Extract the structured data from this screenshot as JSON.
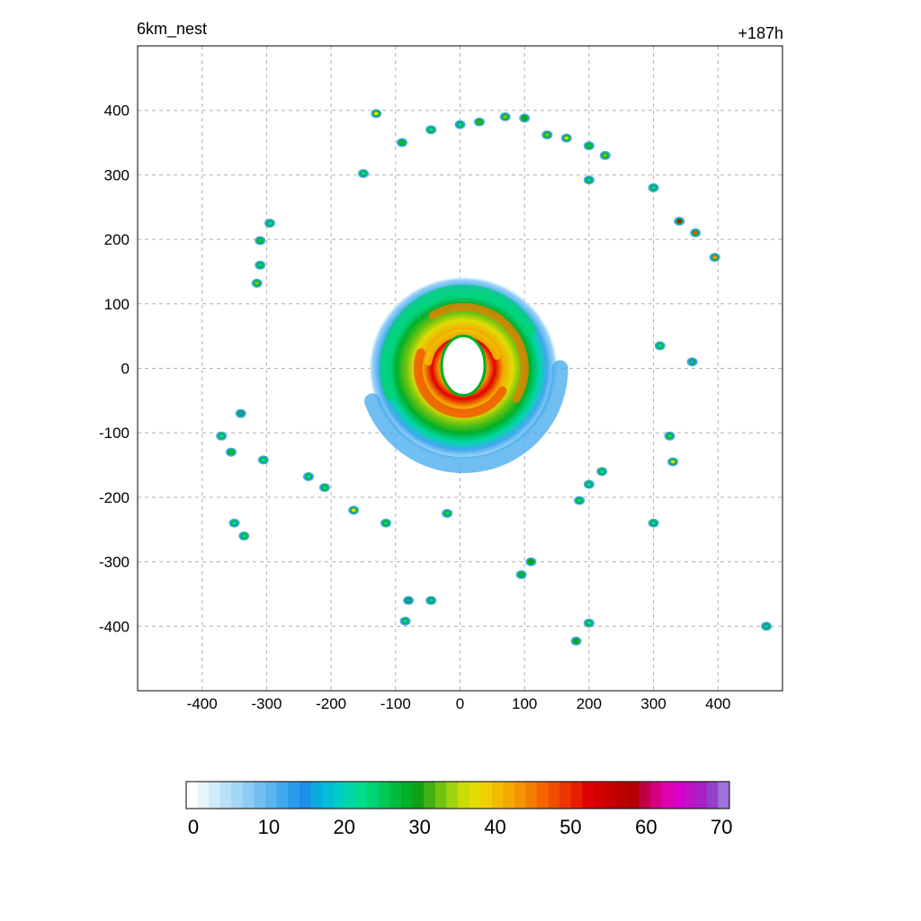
{
  "chart_data": {
    "type": "heatmap",
    "title_left": "6km_nest",
    "title_right": "+187h",
    "x_axis": {
      "ticks": [
        -400,
        -300,
        -200,
        -100,
        0,
        100,
        200,
        300,
        400
      ],
      "range": [
        -500,
        500
      ]
    },
    "y_axis": {
      "ticks": [
        400,
        300,
        200,
        100,
        0,
        -100,
        -200,
        -300,
        -400
      ],
      "range": [
        -500,
        500
      ]
    },
    "grid": true,
    "colorbar": {
      "ticks": [
        0,
        10,
        20,
        30,
        40,
        50,
        60,
        70
      ],
      "range": [
        0,
        72
      ],
      "colors": [
        "#ffffff",
        "#e8f4fc",
        "#d0eafa",
        "#b9e0f8",
        "#a2d6f6",
        "#8bccf4",
        "#72c0f2",
        "#5ab4f0",
        "#40a8ee",
        "#2a9cec",
        "#1a90e8",
        "#0ea8e0",
        "#04bcd8",
        "#00ccc4",
        "#00d8a8",
        "#00dc8c",
        "#00d470",
        "#00c854",
        "#00bc3c",
        "#00b028",
        "#14a014",
        "#40b014",
        "#70c410",
        "#a0d40c",
        "#c8dc08",
        "#e0dc04",
        "#f0d000",
        "#f4bc00",
        "#f4a800",
        "#f49400",
        "#f47c00",
        "#f46400",
        "#f04c00",
        "#ec3400",
        "#e81c00",
        "#e00000",
        "#d40000",
        "#c80000",
        "#bc0000",
        "#b40000",
        "#c00040",
        "#d40080",
        "#e000b0",
        "#d800c8",
        "#c010c8",
        "#a820c8",
        "#9440cc",
        "#a070dc"
      ]
    },
    "field": {
      "eye_center": [
        5,
        25
      ],
      "annular_rings": [
        {
          "level": "light-blue",
          "inner": 85,
          "outer": 180
        },
        {
          "level": "green",
          "inner": 60,
          "outer": 140
        },
        {
          "level": "orange",
          "inner": 40,
          "outer": 105
        },
        {
          "level": "red",
          "inner": 30,
          "outer": 75
        }
      ],
      "cells": [
        {
          "x": -130,
          "y": 395,
          "v": 38
        },
        {
          "x": -90,
          "y": 350,
          "v": 28
        },
        {
          "x": -45,
          "y": 370,
          "v": 22
        },
        {
          "x": 0,
          "y": 378,
          "v": 20
        },
        {
          "x": 30,
          "y": 382,
          "v": 32
        },
        {
          "x": 70,
          "y": 390,
          "v": 34
        },
        {
          "x": 100,
          "y": 388,
          "v": 30
        },
        {
          "x": 135,
          "y": 362,
          "v": 34
        },
        {
          "x": 165,
          "y": 357,
          "v": 36
        },
        {
          "x": 200,
          "y": 345,
          "v": 26
        },
        {
          "x": 225,
          "y": 330,
          "v": 34
        },
        {
          "x": 300,
          "y": 280,
          "v": 20
        },
        {
          "x": 340,
          "y": 228,
          "v": 54
        },
        {
          "x": 365,
          "y": 210,
          "v": 48
        },
        {
          "x": 395,
          "y": 172,
          "v": 44
        },
        {
          "x": -150,
          "y": 302,
          "v": 22
        },
        {
          "x": -295,
          "y": 225,
          "v": 20
        },
        {
          "x": -310,
          "y": 198,
          "v": 26
        },
        {
          "x": -310,
          "y": 160,
          "v": 24
        },
        {
          "x": -315,
          "y": 132,
          "v": 34
        },
        {
          "x": 200,
          "y": 292,
          "v": 18
        },
        {
          "x": 310,
          "y": 35,
          "v": 22
        },
        {
          "x": 360,
          "y": 10,
          "v": 14
        },
        {
          "x": -340,
          "y": -70,
          "v": 16
        },
        {
          "x": -370,
          "y": -105,
          "v": 22
        },
        {
          "x": -355,
          "y": -130,
          "v": 28
        },
        {
          "x": -305,
          "y": -142,
          "v": 22
        },
        {
          "x": -235,
          "y": -168,
          "v": 20
        },
        {
          "x": -210,
          "y": -185,
          "v": 24
        },
        {
          "x": -165,
          "y": -220,
          "v": 38
        },
        {
          "x": -115,
          "y": -240,
          "v": 24
        },
        {
          "x": -350,
          "y": -240,
          "v": 20
        },
        {
          "x": -335,
          "y": -260,
          "v": 24
        },
        {
          "x": 330,
          "y": -145,
          "v": 36
        },
        {
          "x": 325,
          "y": -105,
          "v": 24
        },
        {
          "x": 300,
          "y": -240,
          "v": 20
        },
        {
          "x": 220,
          "y": -160,
          "v": 22
        },
        {
          "x": 200,
          "y": -180,
          "v": 20
        },
        {
          "x": 185,
          "y": -205,
          "v": 24
        },
        {
          "x": 110,
          "y": -300,
          "v": 30
        },
        {
          "x": 95,
          "y": -320,
          "v": 28
        },
        {
          "x": 200,
          "y": -395,
          "v": 22
        },
        {
          "x": 180,
          "y": -423,
          "v": 30
        },
        {
          "x": -80,
          "y": -360,
          "v": 16
        },
        {
          "x": -45,
          "y": -360,
          "v": 18
        },
        {
          "x": -85,
          "y": -392,
          "v": 20
        },
        {
          "x": 475,
          "y": -400,
          "v": 18
        },
        {
          "x": -20,
          "y": -225,
          "v": 24
        }
      ]
    }
  }
}
